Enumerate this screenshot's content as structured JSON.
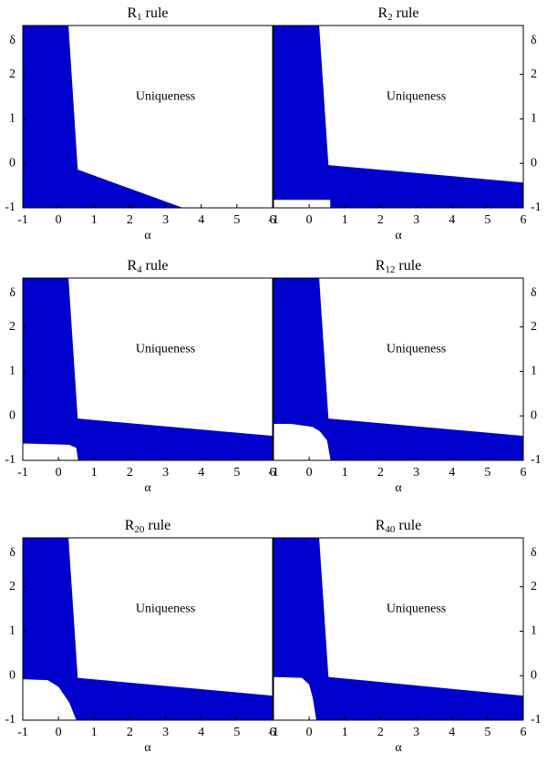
{
  "chart_data": [
    {
      "type": "region",
      "title": {
        "base": "R",
        "sub": "1",
        "rest": " rule"
      },
      "xlabel": "α",
      "ylabel": "δ",
      "annotation": "Uniqueness",
      "xlim": [
        -1,
        6
      ],
      "ylim": [
        -1,
        3.1
      ],
      "xticks": [
        -1,
        0,
        1,
        2,
        3,
        4,
        5,
        6
      ],
      "yticks": [
        -1,
        0,
        1,
        2
      ],
      "regions": [
        {
          "color": "#0000cc",
          "x": [
            -1,
            0.28,
            0.54,
            3.49,
            -1
          ],
          "y": [
            3.1,
            3.1,
            -0.14,
            -1,
            -1
          ]
        }
      ]
    },
    {
      "type": "region",
      "title": {
        "base": "R",
        "sub": "2",
        "rest": " rule"
      },
      "xlabel": "α",
      "ylabel": "δ",
      "annotation": "Uniqueness",
      "xlim": [
        -1,
        6
      ],
      "ylim": [
        -1,
        3.1
      ],
      "xticks": [
        -1,
        0,
        1,
        2,
        3,
        4,
        5,
        6
      ],
      "yticks": [
        -1,
        0,
        1,
        2
      ],
      "regions": [
        {
          "color": "#0000cc",
          "x": [
            -1,
            0.28,
            0.54,
            6,
            6,
            0.59,
            0.59,
            -1
          ],
          "y": [
            3.1,
            3.1,
            -0.04,
            -0.43,
            -1,
            -1,
            -0.82,
            -0.82
          ]
        }
      ]
    },
    {
      "type": "region",
      "title": {
        "base": "R",
        "sub": "4",
        "rest": " rule"
      },
      "xlabel": "α",
      "ylabel": "δ",
      "annotation": "Uniqueness",
      "xlim": [
        -1,
        6
      ],
      "ylim": [
        -1,
        3.1
      ],
      "xticks": [
        -1,
        0,
        1,
        2,
        3,
        4,
        5,
        6
      ],
      "yticks": [
        -1,
        0,
        1,
        2
      ],
      "regions": [
        {
          "color": "#0000cc",
          "x": [
            -1,
            0.28,
            0.54,
            6,
            6,
            0.55,
            0.5,
            0.3,
            -1
          ],
          "y": [
            3.1,
            3.1,
            -0.06,
            -0.45,
            -1,
            -1,
            -0.72,
            -0.65,
            -0.62
          ]
        }
      ]
    },
    {
      "type": "region",
      "title": {
        "base": "R",
        "sub": "12",
        "rest": " rule"
      },
      "xlabel": "α",
      "ylabel": "δ",
      "annotation": "Uniqueness",
      "xlim": [
        -1,
        6
      ],
      "ylim": [
        -1,
        3.1
      ],
      "xticks": [
        -1,
        0,
        1,
        2,
        3,
        4,
        5,
        6
      ],
      "yticks": [
        -1,
        0,
        1,
        2
      ],
      "regions": [
        {
          "color": "#0000cc",
          "x": [
            -1,
            0.28,
            0.54,
            6,
            6,
            0.6,
            0.5,
            0.3,
            0.1,
            -0.5,
            -1
          ],
          "y": [
            3.1,
            3.1,
            -0.06,
            -0.45,
            -1,
            -1,
            -0.55,
            -0.35,
            -0.25,
            -0.18,
            -0.18
          ]
        }
      ]
    },
    {
      "type": "region",
      "title": {
        "base": "R",
        "sub": "20",
        "rest": " rule"
      },
      "xlabel": "α",
      "ylabel": "δ",
      "annotation": "Uniqueness",
      "xlim": [
        -1,
        6
      ],
      "ylim": [
        -1,
        3.1
      ],
      "xticks": [
        -1,
        0,
        1,
        2,
        3,
        4,
        5,
        6
      ],
      "yticks": [
        -1,
        0,
        1,
        2
      ],
      "regions": [
        {
          "color": "#0000cc",
          "x": [
            -1,
            0.28,
            0.54,
            6,
            6,
            0.5,
            0.3,
            0,
            -0.3,
            -1
          ],
          "y": [
            3.1,
            3.1,
            -0.05,
            -0.45,
            -1,
            -1,
            -0.6,
            -0.25,
            -0.1,
            -0.08
          ]
        }
      ]
    },
    {
      "type": "region",
      "title": {
        "base": "R",
        "sub": "40",
        "rest": " rule"
      },
      "xlabel": "α",
      "ylabel": "δ",
      "annotation": "Uniqueness",
      "xlim": [
        -1,
        6
      ],
      "ylim": [
        -1,
        3.1
      ],
      "xticks": [
        -1,
        0,
        1,
        2,
        3,
        4,
        5,
        6
      ],
      "yticks": [
        -1,
        0,
        1,
        2
      ],
      "regions": [
        {
          "color": "#0000cc",
          "x": [
            -1,
            0.28,
            0.54,
            6,
            6,
            0.2,
            0.1,
            0,
            -0.2,
            -1
          ],
          "y": [
            3.1,
            3.1,
            -0.03,
            -0.45,
            -1,
            -1,
            -0.5,
            -0.2,
            -0.05,
            -0.03
          ]
        }
      ]
    }
  ]
}
